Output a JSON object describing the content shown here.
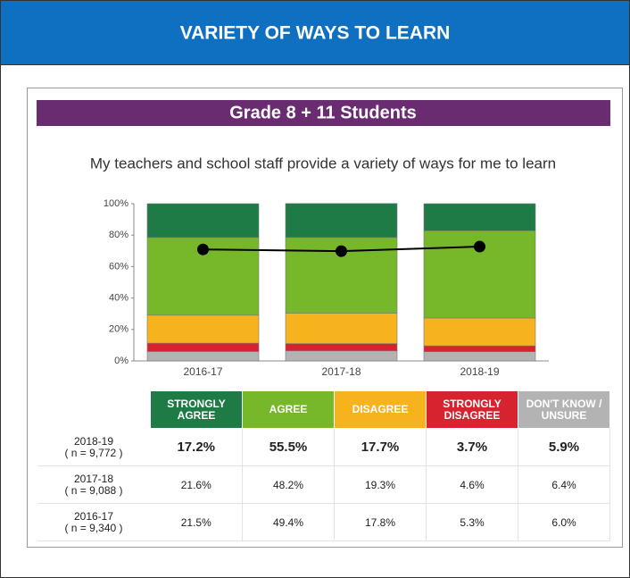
{
  "header": {
    "title": "VARIETY OF WAYS TO LEARN"
  },
  "chart_data": {
    "type": "bar",
    "title": "Grade 8 + 11 Students",
    "subtitle": "My teachers and school staff provide a variety of ways for me to learn",
    "categories": [
      "2016-17",
      "2017-18",
      "2018-19"
    ],
    "n_labels": [
      "( n = 9,340 )",
      "( n = 9,088 )",
      "( n = 9,772 )"
    ],
    "stacked": true,
    "series": [
      {
        "name": "STRONGLY AGREE",
        "color": "#1e7b46",
        "values": [
          21.5,
          21.6,
          17.2
        ],
        "value_labels": [
          "21.5%",
          "21.6%",
          "17.2%"
        ]
      },
      {
        "name": "AGREE",
        "color": "#77b82a",
        "values": [
          49.4,
          48.2,
          55.5
        ],
        "value_labels": [
          "49.4%",
          "48.2%",
          "55.5%"
        ]
      },
      {
        "name": "DISAGREE",
        "color": "#f7b31e",
        "values": [
          17.8,
          19.3,
          17.7
        ],
        "value_labels": [
          "17.8%",
          "19.3%",
          "17.7%"
        ]
      },
      {
        "name": "STRONGLY DISAGREE",
        "color": "#d6232f",
        "values": [
          5.3,
          4.6,
          3.7
        ],
        "value_labels": [
          "5.3%",
          "4.6%",
          "3.7%"
        ]
      },
      {
        "name": "DON'T KNOW / UNSURE",
        "color": "#b3b3b3",
        "values": [
          6.0,
          6.4,
          5.9
        ],
        "value_labels": [
          "6.0%",
          "6.4%",
          "5.9%"
        ]
      }
    ],
    "line": {
      "color": "#000000",
      "values": [
        70.9,
        69.8,
        72.7
      ]
    },
    "ylim": [
      0,
      100
    ],
    "yticks": [
      {
        "value": 0,
        "label": "0%"
      },
      {
        "value": 20,
        "label": "20%"
      },
      {
        "value": 40,
        "label": "40%"
      },
      {
        "value": 60,
        "label": "60%"
      },
      {
        "value": 80,
        "label": "80%"
      },
      {
        "value": 100,
        "label": "100%"
      }
    ]
  }
}
